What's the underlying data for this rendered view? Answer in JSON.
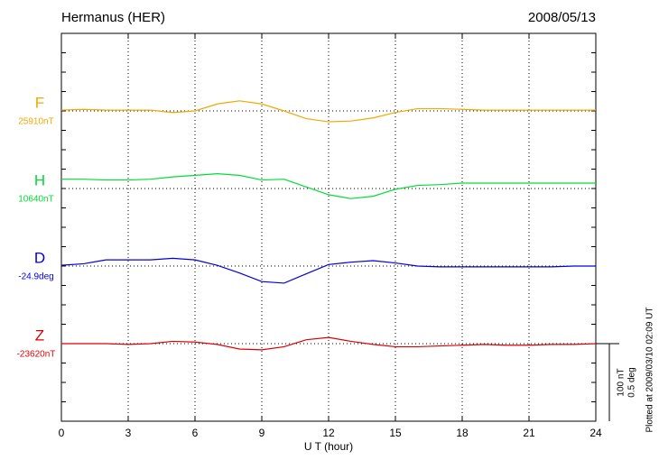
{
  "chart_data": {
    "type": "line",
    "title": "Hermanus (HER)",
    "date": "2008/05/13",
    "xlabel": "U T (hour)",
    "footnote": "Plotted at 2009/03/10 02:09 UT",
    "xlim": [
      0,
      24
    ],
    "xticks": [
      0,
      3,
      6,
      9,
      12,
      15,
      18,
      21,
      24
    ],
    "grid": true,
    "scale_bar": {
      "nT": {
        "value": 100,
        "label": "100 nT"
      },
      "deg": {
        "value": 0.5,
        "label": "0.5 deg"
      }
    },
    "x": [
      0,
      1,
      2,
      3,
      4,
      5,
      6,
      7,
      8,
      9,
      10,
      11,
      12,
      13,
      14,
      15,
      16,
      17,
      18,
      19,
      20,
      21,
      22,
      23,
      24
    ],
    "series": [
      {
        "name": "F",
        "color": "#f0a800",
        "unit": "nT",
        "baseline_label": "25910nT",
        "values": [
          1,
          2,
          1,
          1,
          1,
          -2,
          0,
          9,
          13,
          9,
          0,
          -10,
          -14,
          -13,
          -9,
          -2,
          3,
          3,
          2,
          1,
          1,
          1,
          1,
          1,
          1
        ]
      },
      {
        "name": "H",
        "color": "#00dd33",
        "unit": "nT",
        "baseline_label": "10640nT",
        "values": [
          12,
          12,
          11,
          11,
          12,
          15,
          17,
          19,
          17,
          11,
          12,
          2,
          -8,
          -13,
          -10,
          -1,
          4,
          5,
          7,
          7,
          7,
          7,
          7,
          7,
          7
        ]
      },
      {
        "name": "D",
        "color": "#0000dd",
        "unit": "deg",
        "baseline_label": "-24.9deg",
        "values": [
          0.005,
          0.015,
          0.04,
          0.04,
          0.04,
          0.05,
          0.04,
          0.005,
          -0.045,
          -0.1,
          -0.11,
          -0.05,
          0.01,
          0.025,
          0.035,
          0.02,
          0,
          -0.005,
          -0.005,
          -0.005,
          -0.005,
          -0.005,
          -0.005,
          0,
          0
        ]
      },
      {
        "name": "Z",
        "color": "#dd0000",
        "unit": "nT",
        "baseline_label": "-23620nT",
        "values": [
          0,
          0,
          0,
          -1,
          0,
          3,
          2,
          -1,
          -7,
          -8,
          -4,
          5,
          8,
          3,
          -1,
          -4,
          -4,
          -3,
          -2,
          -1,
          -2,
          -2,
          -1,
          -1,
          0
        ]
      }
    ]
  }
}
